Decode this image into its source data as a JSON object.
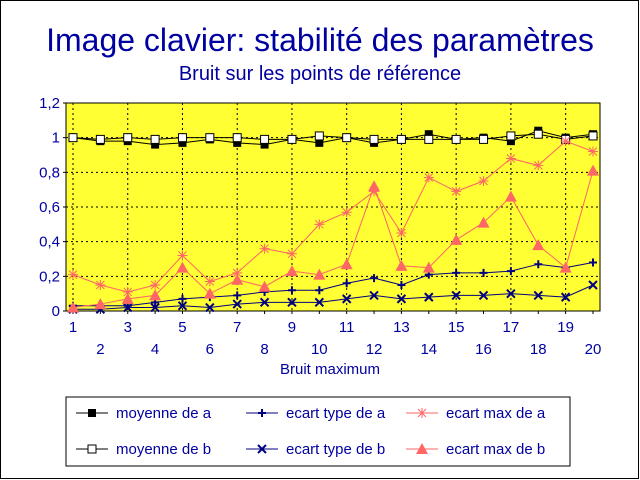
{
  "chart_data": {
    "type": "line",
    "title": "Image clavier: stabilité des paramètres",
    "subtitle": "Bruit sur les points de référence",
    "xlabel": "Bruit maximum",
    "ylabel": "",
    "ylim": [
      0,
      1.2
    ],
    "grid": true,
    "legend_position": "bottom",
    "plot_background": "#ffff33",
    "x": [
      1,
      2,
      3,
      4,
      5,
      6,
      7,
      8,
      9,
      10,
      11,
      12,
      13,
      14,
      15,
      16,
      17,
      18,
      19,
      20
    ],
    "x_tick_labels": [
      "1",
      "2",
      "3",
      "4",
      "5",
      "6",
      "7",
      "8",
      "9",
      "10",
      "11",
      "12",
      "13",
      "14",
      "15",
      "16",
      "17",
      "18",
      "19",
      "20"
    ],
    "y_ticks": [
      0,
      0.2,
      0.4,
      0.6,
      0.8,
      1,
      1.2
    ],
    "y_tick_labels": [
      "0",
      "0,2",
      "0,4",
      "0,6",
      "0,8",
      "1",
      "1,2"
    ],
    "series": [
      {
        "name": "moyenne de a",
        "color": "#000000",
        "marker": "filled-square",
        "values": [
          1.0,
          0.98,
          0.98,
          0.96,
          0.97,
          0.99,
          0.97,
          0.96,
          0.99,
          0.97,
          1.0,
          0.97,
          0.99,
          1.02,
          0.99,
          1.0,
          0.98,
          1.04,
          1.0,
          1.02
        ]
      },
      {
        "name": "moyenne de b",
        "color": "#000000",
        "marker": "open-square",
        "values": [
          1.0,
          0.99,
          1.0,
          0.99,
          1.0,
          1.0,
          1.0,
          0.99,
          0.99,
          1.01,
          1.0,
          0.99,
          0.99,
          0.99,
          0.99,
          0.99,
          1.01,
          1.02,
          0.99,
          1.01
        ]
      },
      {
        "name": "ecart type de a",
        "color": "#000080",
        "marker": "plus",
        "values": [
          0.03,
          0.03,
          0.03,
          0.05,
          0.07,
          0.08,
          0.09,
          0.11,
          0.12,
          0.12,
          0.16,
          0.19,
          0.15,
          0.21,
          0.22,
          0.22,
          0.23,
          0.27,
          0.25,
          0.28
        ]
      },
      {
        "name": "ecart type de b",
        "color": "#000080",
        "marker": "x",
        "values": [
          0.01,
          0.01,
          0.02,
          0.02,
          0.03,
          0.02,
          0.04,
          0.05,
          0.05,
          0.05,
          0.07,
          0.09,
          0.07,
          0.08,
          0.09,
          0.09,
          0.1,
          0.09,
          0.08,
          0.15
        ]
      },
      {
        "name": "ecart max de a",
        "color": "#ff6666",
        "marker": "asterisk",
        "values": [
          0.21,
          0.15,
          0.11,
          0.15,
          0.32,
          0.17,
          0.22,
          0.36,
          0.33,
          0.5,
          0.57,
          0.69,
          0.45,
          0.77,
          0.69,
          0.75,
          0.88,
          0.84,
          0.98,
          0.92
        ]
      },
      {
        "name": "ecart max de b",
        "color": "#ff6666",
        "marker": "filled-triangle",
        "values": [
          0.02,
          0.04,
          0.07,
          0.09,
          0.25,
          0.1,
          0.18,
          0.14,
          0.23,
          0.21,
          0.27,
          0.72,
          0.26,
          0.25,
          0.41,
          0.51,
          0.66,
          0.38,
          0.25,
          0.81
        ]
      }
    ]
  }
}
